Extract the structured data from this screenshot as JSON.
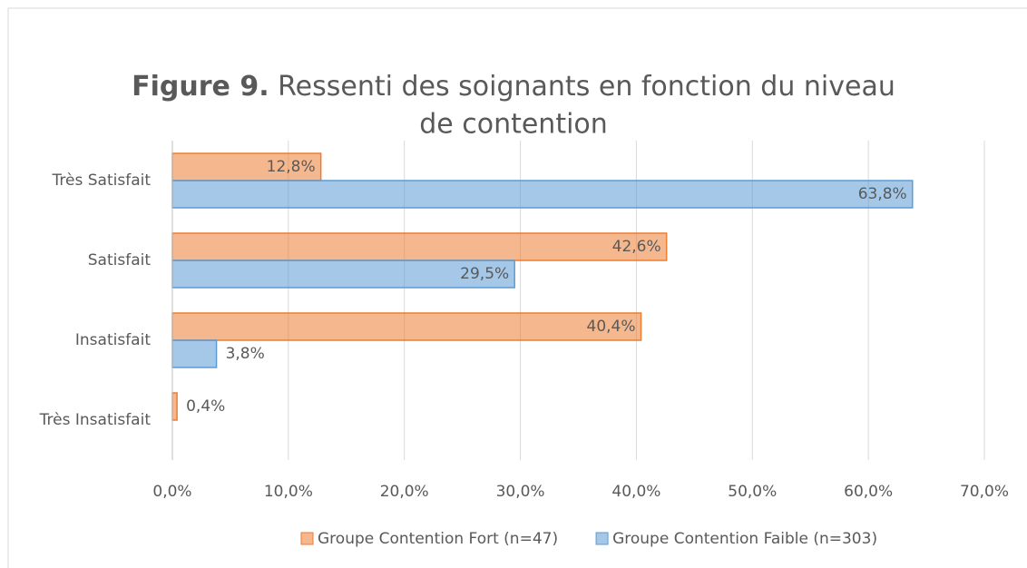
{
  "chart_data": {
    "type": "bar",
    "orientation": "horizontal",
    "title": {
      "number": "Figure 9.",
      "lines": [
        "Ressenti des soignants en fonction du niveau",
        "de contention"
      ]
    },
    "categories": [
      "Très Satisfait",
      "Satisfait",
      "Insatisfait",
      "Très Insatisfait"
    ],
    "series": [
      {
        "name": "Groupe Contention Fort (n=47)",
        "color": "#ed7d31",
        "values": [
          12.8,
          42.6,
          40.4,
          0.4
        ],
        "value_labels": [
          "12,8%",
          "42,6%",
          "40,4%",
          "0,4%"
        ]
      },
      {
        "name": "Groupe Contention Faible (n=303)",
        "color": "#5b9bd5",
        "values": [
          63.8,
          29.5,
          3.8,
          null
        ],
        "value_labels": [
          "63,8%",
          "29,5%",
          "3,8%",
          null
        ]
      }
    ],
    "xlim": [
      0,
      70
    ],
    "xticks": [
      {
        "value": 0,
        "label": "0,0%"
      },
      {
        "value": 10,
        "label": "10,0%"
      },
      {
        "value": 20,
        "label": "20,0%"
      },
      {
        "value": 30,
        "label": "30,0%"
      },
      {
        "value": 40,
        "label": "40,0%"
      },
      {
        "value": 50,
        "label": "50,0%"
      },
      {
        "value": 60,
        "label": "60,0%"
      },
      {
        "value": 70,
        "label": "70,0%"
      }
    ],
    "grid": true,
    "legend": "bottom"
  }
}
